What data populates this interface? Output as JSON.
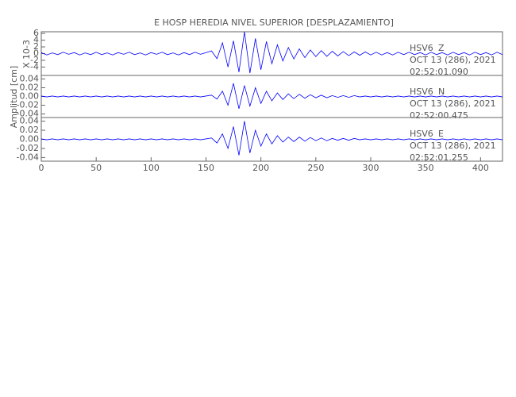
{
  "chart_data": {
    "type": "line",
    "title": "E HOSP HEREDIA NIVEL SUPERIOR [DESPLAZAMIENTO]",
    "y_label": "Amplitud [cm]",
    "y_scale_label": "X 10-3",
    "xlim": [
      0,
      420
    ],
    "xticks": [
      0,
      50,
      100,
      150,
      200,
      250,
      300,
      350,
      400
    ],
    "x": [
      0,
      5,
      10,
      15,
      20,
      25,
      30,
      35,
      40,
      45,
      50,
      55,
      60,
      65,
      70,
      75,
      80,
      85,
      90,
      95,
      100,
      105,
      110,
      115,
      120,
      125,
      130,
      135,
      140,
      145,
      150,
      155,
      160,
      165,
      170,
      175,
      180,
      185,
      190,
      195,
      200,
      205,
      210,
      215,
      220,
      225,
      230,
      235,
      240,
      245,
      250,
      255,
      260,
      265,
      270,
      275,
      280,
      285,
      290,
      295,
      300,
      305,
      310,
      315,
      320,
      325,
      330,
      335,
      340,
      345,
      350,
      355,
      360,
      365,
      370,
      375,
      380,
      385,
      390,
      395,
      400,
      405,
      410,
      415,
      420
    ],
    "panels": [
      {
        "station": "HSV6",
        "component": "Z",
        "date": "OCT 13 (286), 2021",
        "time": "02:52:01.090",
        "color": "#0000ff",
        "ylim": [
          -6.5,
          6.5
        ],
        "yticks": [
          -4,
          -2,
          0,
          2,
          4,
          6
        ],
        "values": [
          0.3,
          -0.4,
          0.2,
          -0.3,
          0.4,
          -0.2,
          0.3,
          -0.4,
          0.2,
          -0.3,
          0.4,
          -0.3,
          0.2,
          -0.4,
          0.3,
          -0.2,
          0.4,
          -0.3,
          0.2,
          -0.4,
          0.3,
          -0.2,
          0.4,
          -0.3,
          0.2,
          -0.4,
          0.3,
          -0.3,
          0.4,
          -0.2,
          0.3,
          0.8,
          -1.5,
          3.2,
          -4.0,
          3.8,
          -5.5,
          6.5,
          -5.8,
          4.5,
          -4.8,
          3.6,
          -3.0,
          2.6,
          -2.2,
          1.8,
          -1.6,
          1.4,
          -1.2,
          1.1,
          -0.9,
          0.9,
          -0.8,
          0.7,
          -0.7,
          0.6,
          -0.6,
          0.5,
          -0.5,
          0.5,
          -0.4,
          0.4,
          -0.4,
          0.3,
          -0.4,
          0.4,
          -0.3,
          0.4,
          -0.3,
          0.3,
          -0.4,
          0.4,
          -0.3,
          0.3,
          -0.4,
          0.4,
          -0.3,
          0.3,
          -0.4,
          0.4,
          -0.3,
          0.3,
          -0.4,
          0.4,
          -0.3
        ]
      },
      {
        "station": "HSV6",
        "component": "N",
        "date": "OCT 13 (286), 2021",
        "time": "02:52:00.475",
        "color": "#0000ff",
        "ylim": [
          -0.048,
          0.048
        ],
        "yticks": [
          {
            "value": -0.04,
            "label": "-0.04"
          },
          {
            "value": -0.02,
            "label": "-0.02"
          },
          {
            "value": 0,
            "label": "0.00"
          },
          {
            "value": 0.02,
            "label": "0.02"
          },
          {
            "value": 0.04,
            "label": "0.04"
          }
        ],
        "values": [
          0.001,
          -0.001,
          0.001,
          -0.001,
          0.001,
          -0.001,
          0.001,
          -0.001,
          0.001,
          -0.001,
          0.001,
          -0.001,
          0.001,
          -0.001,
          0.001,
          -0.001,
          0.001,
          -0.001,
          0.001,
          -0.001,
          0.001,
          -0.001,
          0.001,
          -0.001,
          0.001,
          -0.001,
          0.001,
          -0.001,
          0.001,
          -0.001,
          0.001,
          0.003,
          -0.006,
          0.012,
          -0.02,
          0.03,
          -0.028,
          0.025,
          -0.022,
          0.02,
          -0.016,
          0.012,
          -0.01,
          0.008,
          -0.007,
          0.006,
          -0.005,
          0.005,
          -0.004,
          0.004,
          -0.003,
          0.003,
          -0.003,
          0.002,
          -0.002,
          0.002,
          -0.002,
          0.002,
          -0.001,
          0.001,
          -0.001,
          0.001,
          -0.001,
          0.001,
          -0.001,
          0.001,
          -0.001,
          0.001,
          -0.001,
          0.001,
          -0.001,
          0.001,
          -0.001,
          0.001,
          -0.001,
          0.001,
          -0.001,
          0.001,
          -0.001,
          0.001,
          -0.001,
          0.001,
          -0.001,
          0.001,
          -0.001
        ]
      },
      {
        "station": "HSV6",
        "component": "E",
        "date": "OCT 13 (286), 2021",
        "time": "02:52:01.255",
        "color": "#0000ff",
        "ylim": [
          -0.048,
          0.048
        ],
        "yticks": [
          {
            "value": -0.04,
            "label": "-0.04"
          },
          {
            "value": -0.02,
            "label": "-0.02"
          },
          {
            "value": 0,
            "label": "0.00"
          },
          {
            "value": 0.02,
            "label": "0.02"
          },
          {
            "value": 0.04,
            "label": "0.04"
          }
        ],
        "values": [
          0.001,
          -0.001,
          0.001,
          -0.001,
          0.001,
          -0.001,
          0.001,
          -0.001,
          0.001,
          -0.001,
          0.001,
          -0.001,
          0.001,
          -0.001,
          0.001,
          -0.001,
          0.001,
          -0.001,
          0.001,
          -0.001,
          0.001,
          -0.001,
          0.001,
          -0.001,
          0.001,
          -0.001,
          0.001,
          -0.001,
          0.001,
          -0.001,
          0.001,
          0.003,
          -0.008,
          0.012,
          -0.02,
          0.028,
          -0.035,
          0.04,
          -0.03,
          0.02,
          -0.015,
          0.012,
          -0.01,
          0.008,
          -0.006,
          0.005,
          -0.005,
          0.005,
          -0.004,
          0.004,
          -0.003,
          0.003,
          -0.003,
          0.002,
          -0.002,
          0.002,
          -0.002,
          0.002,
          -0.001,
          0.001,
          -0.001,
          0.001,
          -0.001,
          0.001,
          -0.001,
          0.001,
          -0.001,
          0.001,
          -0.001,
          0.001,
          -0.001,
          0.001,
          -0.001,
          0.001,
          -0.001,
          0.001,
          -0.001,
          0.001,
          -0.001,
          0.001,
          -0.001,
          0.001,
          -0.001,
          0.001,
          -0.001
        ]
      }
    ]
  }
}
